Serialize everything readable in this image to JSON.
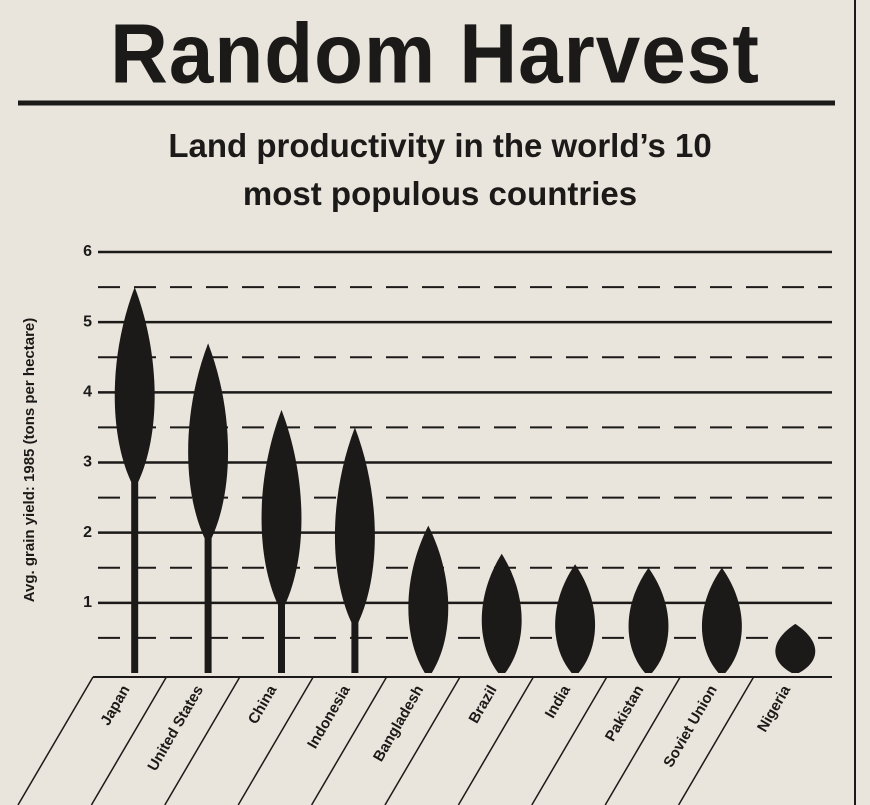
{
  "chart_data": {
    "type": "pictogram-bar",
    "title": "Random Harvest",
    "subtitle": "Land productivity in the world’s 10 most populous countries",
    "y_label": "Avg. grain yield: 1985 (tons per hectare)",
    "categories": [
      "Japan",
      "United States",
      "China",
      "Indonesia",
      "Bangladesh",
      "Brazil",
      "India",
      "Pakistan",
      "Soviet Union",
      "Nigeria"
    ],
    "values": [
      5.5,
      4.7,
      3.75,
      3.5,
      2.1,
      1.7,
      1.55,
      1.5,
      1.5,
      0.7
    ],
    "color": "#1c1a18",
    "ylim": [
      0,
      6
    ],
    "yticks": [
      1,
      2,
      3,
      4,
      5,
      6
    ],
    "minor_yticks": [
      0.5,
      1.5,
      2.5,
      3.5,
      4.5,
      5.5
    ],
    "grid": true
  }
}
